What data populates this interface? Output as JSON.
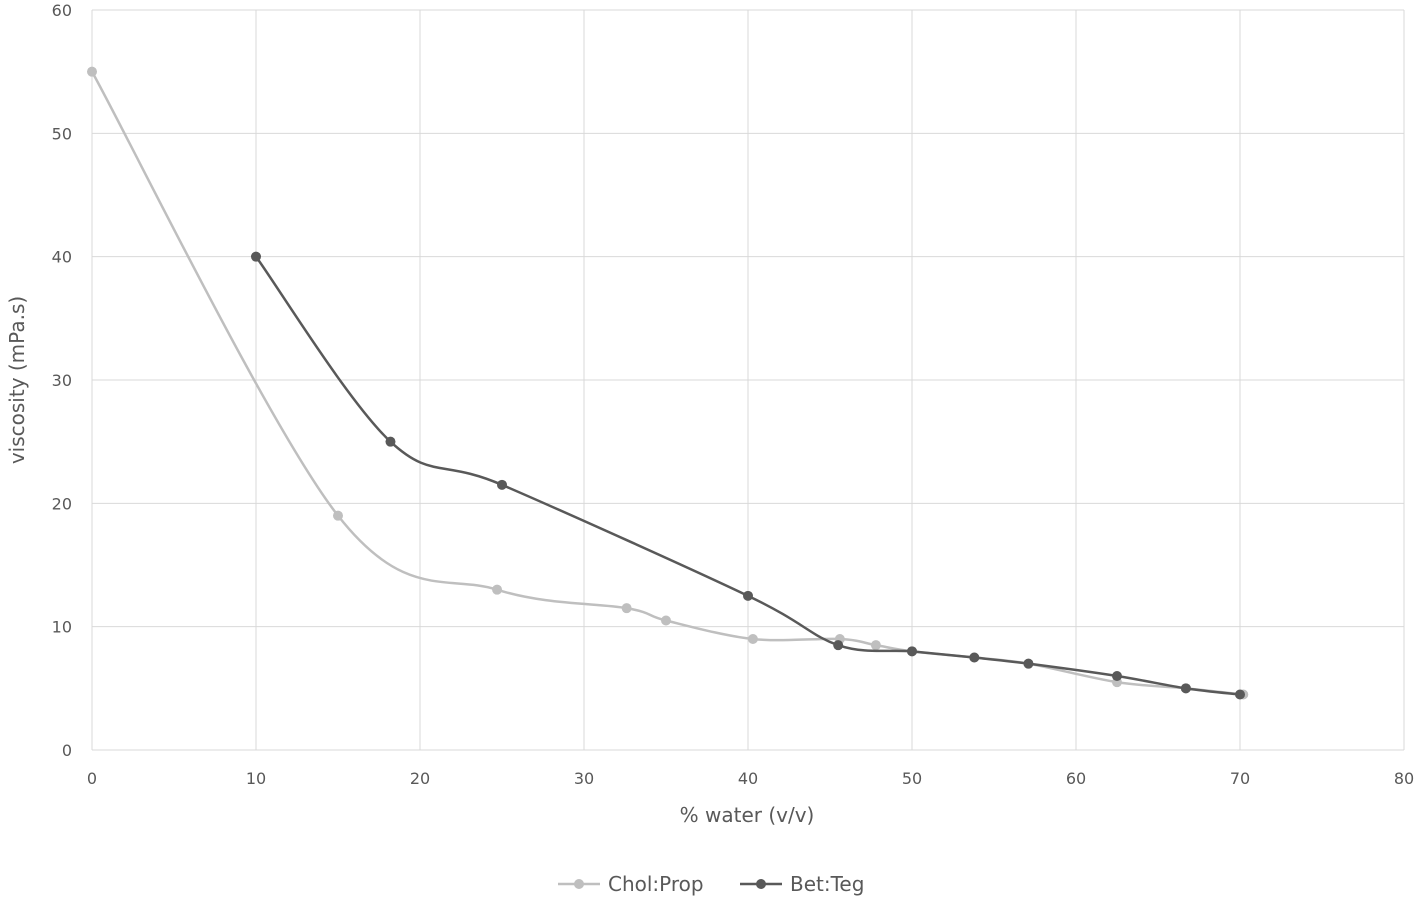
{
  "chart_data": {
    "type": "line",
    "title": "",
    "xlabel": "% water (v/v)",
    "ylabel": "viscosity (mPa.s)",
    "xlim": [
      0,
      80
    ],
    "ylim": [
      0,
      60
    ],
    "xticks": [
      0,
      10,
      20,
      30,
      40,
      50,
      60,
      70,
      80
    ],
    "yticks": [
      0,
      10,
      20,
      30,
      40,
      50,
      60
    ],
    "grid": true,
    "smooth": true,
    "legend_position": "bottom",
    "series": [
      {
        "name": "Chol:Prop",
        "color": "#bfbfbf",
        "x": [
          0,
          15,
          24.7,
          32.6,
          35,
          40.3,
          45.6,
          47.8,
          50,
          53.8,
          57.1,
          62.5,
          66.7,
          70.2
        ],
        "y": [
          55,
          19,
          13,
          11.5,
          10.5,
          9,
          9,
          8.5,
          8,
          7.5,
          7,
          5.5,
          5,
          4.5
        ]
      },
      {
        "name": "Bet:Teg",
        "color": "#595959",
        "x": [
          10,
          18.2,
          25,
          40,
          45.5,
          50,
          53.8,
          57.1,
          62.5,
          66.7,
          70
        ],
        "y": [
          40,
          25,
          21.5,
          12.5,
          8.5,
          8,
          7.5,
          7,
          6,
          5,
          4.5
        ]
      }
    ]
  }
}
